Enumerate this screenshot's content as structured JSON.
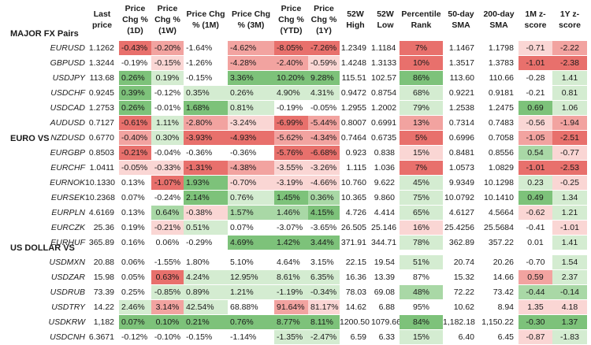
{
  "headers": [
    "Last price",
    "Price Chg % (1D)",
    "Price Chg % (1W)",
    "Price Chg % (1M)",
    "Price Chg % (3M)",
    "Price Chg % (YTD)",
    "Price Chg % (1Y)",
    "52W High",
    "52W Low",
    "Percentile Rank",
    "50-day SMA",
    "200-day SMA",
    "1M z-score",
    "1Y z-score"
  ],
  "header_display": [
    "Last\nprice",
    "Price\nChg %\n(1D)",
    "Price\nChg %\n(1W)",
    "Price Chg\n% (1M)",
    "Price Chg\n% (3M)",
    "Price\nChg %\n(YTD)",
    "Price\nChg %\n(1Y)",
    "52W\nHigh",
    "52W\nLow",
    "Percentile\nRank",
    "50-day\nSMA",
    "200-day\nSMA",
    "1M z-\nscore",
    "1Y z-\nscore"
  ],
  "sections": [
    {
      "title": "MAJOR FX Pairs",
      "rows": [
        {
          "pair": "EURUSD",
          "values": [
            "1.1262",
            "-0.43%",
            "-0.20%",
            "-1.64%",
            "-4.62%",
            "-8.05%",
            "-7.26%",
            "1.2349",
            "1.1184",
            "7%",
            "1.1467",
            "1.1798",
            "-0.71",
            "-2.22"
          ]
        },
        {
          "pair": "GBPUSD",
          "values": [
            "1.3244",
            "-0.19%",
            "-0.15%",
            "-1.26%",
            "-4.28%",
            "-2.40%",
            "-0.59%",
            "1.4248",
            "1.3133",
            "10%",
            "1.3517",
            "1.3783",
            "-1.01",
            "-2.38"
          ]
        },
        {
          "pair": "USDJPY",
          "values": [
            "113.68",
            "0.26%",
            "0.19%",
            "-0.15%",
            "3.36%",
            "10.20%",
            "9.28%",
            "115.51",
            "102.57",
            "86%",
            "113.60",
            "110.66",
            "-0.28",
            "1.41"
          ]
        },
        {
          "pair": "USDCHF",
          "values": [
            "0.9245",
            "0.39%",
            "-0.12%",
            "0.35%",
            "0.26%",
            "4.90%",
            "4.31%",
            "0.9472",
            "0.8754",
            "68%",
            "0.9221",
            "0.9181",
            "-0.21",
            "0.81"
          ]
        },
        {
          "pair": "USDCAD",
          "values": [
            "1.2753",
            "0.26%",
            "-0.01%",
            "1.68%",
            "0.81%",
            "-0.19%",
            "-0.05%",
            "1.2955",
            "1.2002",
            "79%",
            "1.2538",
            "1.2475",
            "0.69",
            "1.06"
          ]
        },
        {
          "pair": "AUDUSD",
          "values": [
            "0.7127",
            "-0.61%",
            "1.11%",
            "-2.80%",
            "-3.24%",
            "-6.99%",
            "-5.44%",
            "0.8007",
            "0.6991",
            "13%",
            "0.7314",
            "0.7483",
            "-0.56",
            "-1.94"
          ]
        },
        {
          "pair": "NZDUSD",
          "values": [
            "0.6770",
            "-0.40%",
            "0.30%",
            "-3.93%",
            "-4.93%",
            "-5.62%",
            "-4.34%",
            "0.7464",
            "0.6735",
            "5%",
            "0.6996",
            "0.7058",
            "-1.05",
            "-2.51"
          ]
        }
      ]
    },
    {
      "title": "EURO VS",
      "rows": [
        {
          "pair": "EURGBP",
          "values": [
            "0.8503",
            "-0.21%",
            "-0.04%",
            "-0.36%",
            "-0.36%",
            "-5.76%",
            "-6.68%",
            "0.923",
            "0.838",
            "15%",
            "0.8481",
            "0.8556",
            "0.54",
            "-0.77"
          ]
        },
        {
          "pair": "EURCHF",
          "values": [
            "1.0411",
            "-0.05%",
            "-0.33%",
            "-1.31%",
            "-4.38%",
            "-3.55%",
            "-3.26%",
            "1.115",
            "1.036",
            "7%",
            "1.0573",
            "1.0829",
            "-1.01",
            "-2.53"
          ]
        },
        {
          "pair": "EURNOK",
          "values": [
            "10.1330",
            "0.13%",
            "-1.07%",
            "1.93%",
            "-0.70%",
            "-3.19%",
            "-4.66%",
            "10.760",
            "9.622",
            "45%",
            "9.9349",
            "10.1298",
            "0.23",
            "-0.25"
          ]
        },
        {
          "pair": "EURSEK",
          "values": [
            "10.2368",
            "0.07%",
            "-0.24%",
            "2.14%",
            "0.76%",
            "1.45%",
            "0.36%",
            "10.365",
            "9.860",
            "75%",
            "10.0792",
            "10.1410",
            "0.49",
            "1.34"
          ]
        },
        {
          "pair": "EURPLN",
          "values": [
            "4.6169",
            "0.13%",
            "0.64%",
            "-0.38%",
            "1.57%",
            "1.46%",
            "4.15%",
            "4.726",
            "4.414",
            "65%",
            "4.6127",
            "4.5664",
            "-0.62",
            "1.21"
          ]
        },
        {
          "pair": "EURCZK",
          "values": [
            "25.36",
            "0.19%",
            "-0.21%",
            "0.51%",
            "0.07%",
            "-3.07%",
            "-3.65%",
            "26.505",
            "25.146",
            "16%",
            "25.4256",
            "25.5684",
            "-0.41",
            "-1.01"
          ]
        },
        {
          "pair": "EURHUF",
          "values": [
            "365.89",
            "0.16%",
            "0.06%",
            "-0.29%",
            "4.69%",
            "1.42%",
            "3.44%",
            "371.91",
            "344.71",
            "78%",
            "362.89",
            "357.22",
            "0.01",
            "1.41"
          ]
        }
      ]
    },
    {
      "title": "US DOLLAR VS",
      "rows": [
        {
          "pair": "USDMXN",
          "values": [
            "20.88",
            "0.06%",
            "-1.55%",
            "1.80%",
            "5.10%",
            "4.64%",
            "3.15%",
            "22.15",
            "19.54",
            "51%",
            "20.74",
            "20.26",
            "-0.70",
            "1.54"
          ]
        },
        {
          "pair": "USDZAR",
          "values": [
            "15.98",
            "0.05%",
            "0.63%",
            "4.24%",
            "12.95%",
            "8.61%",
            "6.35%",
            "16.36",
            "13.39",
            "87%",
            "15.32",
            "14.66",
            "0.59",
            "2.37"
          ]
        },
        {
          "pair": "USDRUB",
          "values": [
            "73.39",
            "0.25%",
            "-0.85%",
            "0.89%",
            "1.21%",
            "-1.19%",
            "-0.34%",
            "78.03",
            "69.08",
            "48%",
            "72.22",
            "73.42",
            "-0.44",
            "-0.14"
          ]
        },
        {
          "pair": "USDTRY",
          "values": [
            "14.22",
            "2.46%",
            "3.14%",
            "42.54%",
            "68.88%",
            "91.64%",
            "81.17%",
            "14.62",
            "6.88",
            "95%",
            "10.62",
            "8.94",
            "1.35",
            "4.18"
          ]
        },
        {
          "pair": "USDKRW",
          "values": [
            "1,182",
            "0.07%",
            "0.10%",
            "0.21%",
            "0.76%",
            "8.77%",
            "8.11%",
            "1200.50",
            "1079.66",
            "84%",
            "1,182.18",
            "1,150.22",
            "-0.30",
            "1.37"
          ]
        },
        {
          "pair": "USDCNH",
          "values": [
            "6.3671",
            "-0.12%",
            "-0.10%",
            "-0.15%",
            "-1.14%",
            "-1.35%",
            "-2.47%",
            "6.59",
            "6.33",
            "15%",
            "6.40",
            "6.45",
            "-0.87",
            "-1.83"
          ]
        }
      ]
    }
  ],
  "colors": {
    "red_strong": "#e8706c",
    "red_mid": "#f2a3a0",
    "red_light": "#fad6d4",
    "green_strong": "#7dc27a",
    "green_mid": "#a9d8a6",
    "green_light": "#d4ecd1",
    "text": "#1a1a1a",
    "background": "#ffffff"
  },
  "cell_colors": [
    [
      "",
      "rs",
      "rm",
      "",
      "rm",
      "rs",
      "rs",
      "",
      "",
      "rs",
      "",
      "",
      "rl",
      "rm"
    ],
    [
      "",
      "",
      "rl",
      "",
      "rm",
      "rm",
      "rl",
      "",
      "",
      "rs",
      "",
      "",
      "rs",
      "rs"
    ],
    [
      "",
      "gs",
      "gl",
      "",
      "gs",
      "gs",
      "gs",
      "",
      "",
      "gs",
      "",
      "",
      "",
      "gl"
    ],
    [
      "",
      "gs",
      "",
      "gl",
      "gl",
      "gl",
      "gl",
      "",
      "",
      "gl",
      "",
      "",
      "",
      "gl"
    ],
    [
      "",
      "gs",
      "",
      "gs",
      "gl",
      "",
      "",
      "",
      "",
      "gl",
      "",
      "",
      "gs",
      "gl"
    ],
    [
      "",
      "rs",
      "gl",
      "rm",
      "rl",
      "rs",
      "rm",
      "",
      "",
      "rm",
      "",
      "",
      "rl",
      "rm"
    ],
    [
      "",
      "rm",
      "gl",
      "rs",
      "rs",
      "rm",
      "rm",
      "",
      "",
      "rs",
      "",
      "",
      "rm",
      "rs"
    ],
    [
      "",
      "rs",
      "",
      "",
      "",
      "rs",
      "rs",
      "",
      "",
      "rl",
      "",
      "",
      "gm",
      "rl"
    ],
    [
      "",
      "rl",
      "rl",
      "rs",
      "rm",
      "rl",
      "rl",
      "",
      "",
      "rs",
      "",
      "",
      "rs",
      "rs"
    ],
    [
      "",
      "",
      "rs",
      "gs",
      "rl",
      "rl",
      "rl",
      "",
      "",
      "gl",
      "",
      "",
      "gl",
      "rl"
    ],
    [
      "",
      "",
      "",
      "gs",
      "gl",
      "gs",
      "gm",
      "",
      "",
      "gl",
      "",
      "",
      "gs",
      "gl"
    ],
    [
      "",
      "",
      "gm",
      "rl",
      "gm",
      "gm",
      "gs",
      "",
      "",
      "gl",
      "",
      "",
      "rl",
      "gl"
    ],
    [
      "",
      "",
      "rl",
      "gl",
      "",
      "",
      "",
      "",
      "",
      "rl",
      "",
      "",
      "",
      "rl"
    ],
    [
      "",
      "",
      "",
      "",
      "gs",
      "gs",
      "gs",
      "",
      "",
      "gl",
      "",
      "",
      "",
      "gl"
    ],
    [
      "",
      "",
      "",
      "",
      "",
      "",
      "",
      "",
      "",
      "gl",
      "",
      "",
      "",
      "gl"
    ],
    [
      "",
      "",
      "rs",
      "gl",
      "gl",
      "gl",
      "gl",
      "",
      "",
      "",
      "",
      "",
      "rm",
      "gl"
    ],
    [
      "",
      "",
      "gl",
      "gl",
      "gl",
      "gl",
      "gl",
      "",
      "",
      "gm",
      "",
      "",
      "gm",
      "gm"
    ],
    [
      "",
      "gl",
      "rm",
      "gl",
      "",
      "rm",
      "rl",
      "",
      "",
      "",
      "",
      "",
      "rl",
      "rl"
    ],
    [
      "",
      "gs",
      "gs",
      "gs",
      "gs",
      "gs",
      "gs",
      "",
      "",
      "gs",
      "",
      "",
      "gs",
      "gs"
    ],
    [
      "",
      "",
      "",
      "",
      "",
      "gl",
      "gl",
      "",
      "",
      "gl",
      "",
      "",
      "rl",
      "gl"
    ],
    [
      "",
      "rs",
      "",
      "rl",
      "rl",
      "rl",
      "rm",
      "",
      "",
      "rl",
      "",
      "",
      "rm",
      "rm"
    ]
  ]
}
